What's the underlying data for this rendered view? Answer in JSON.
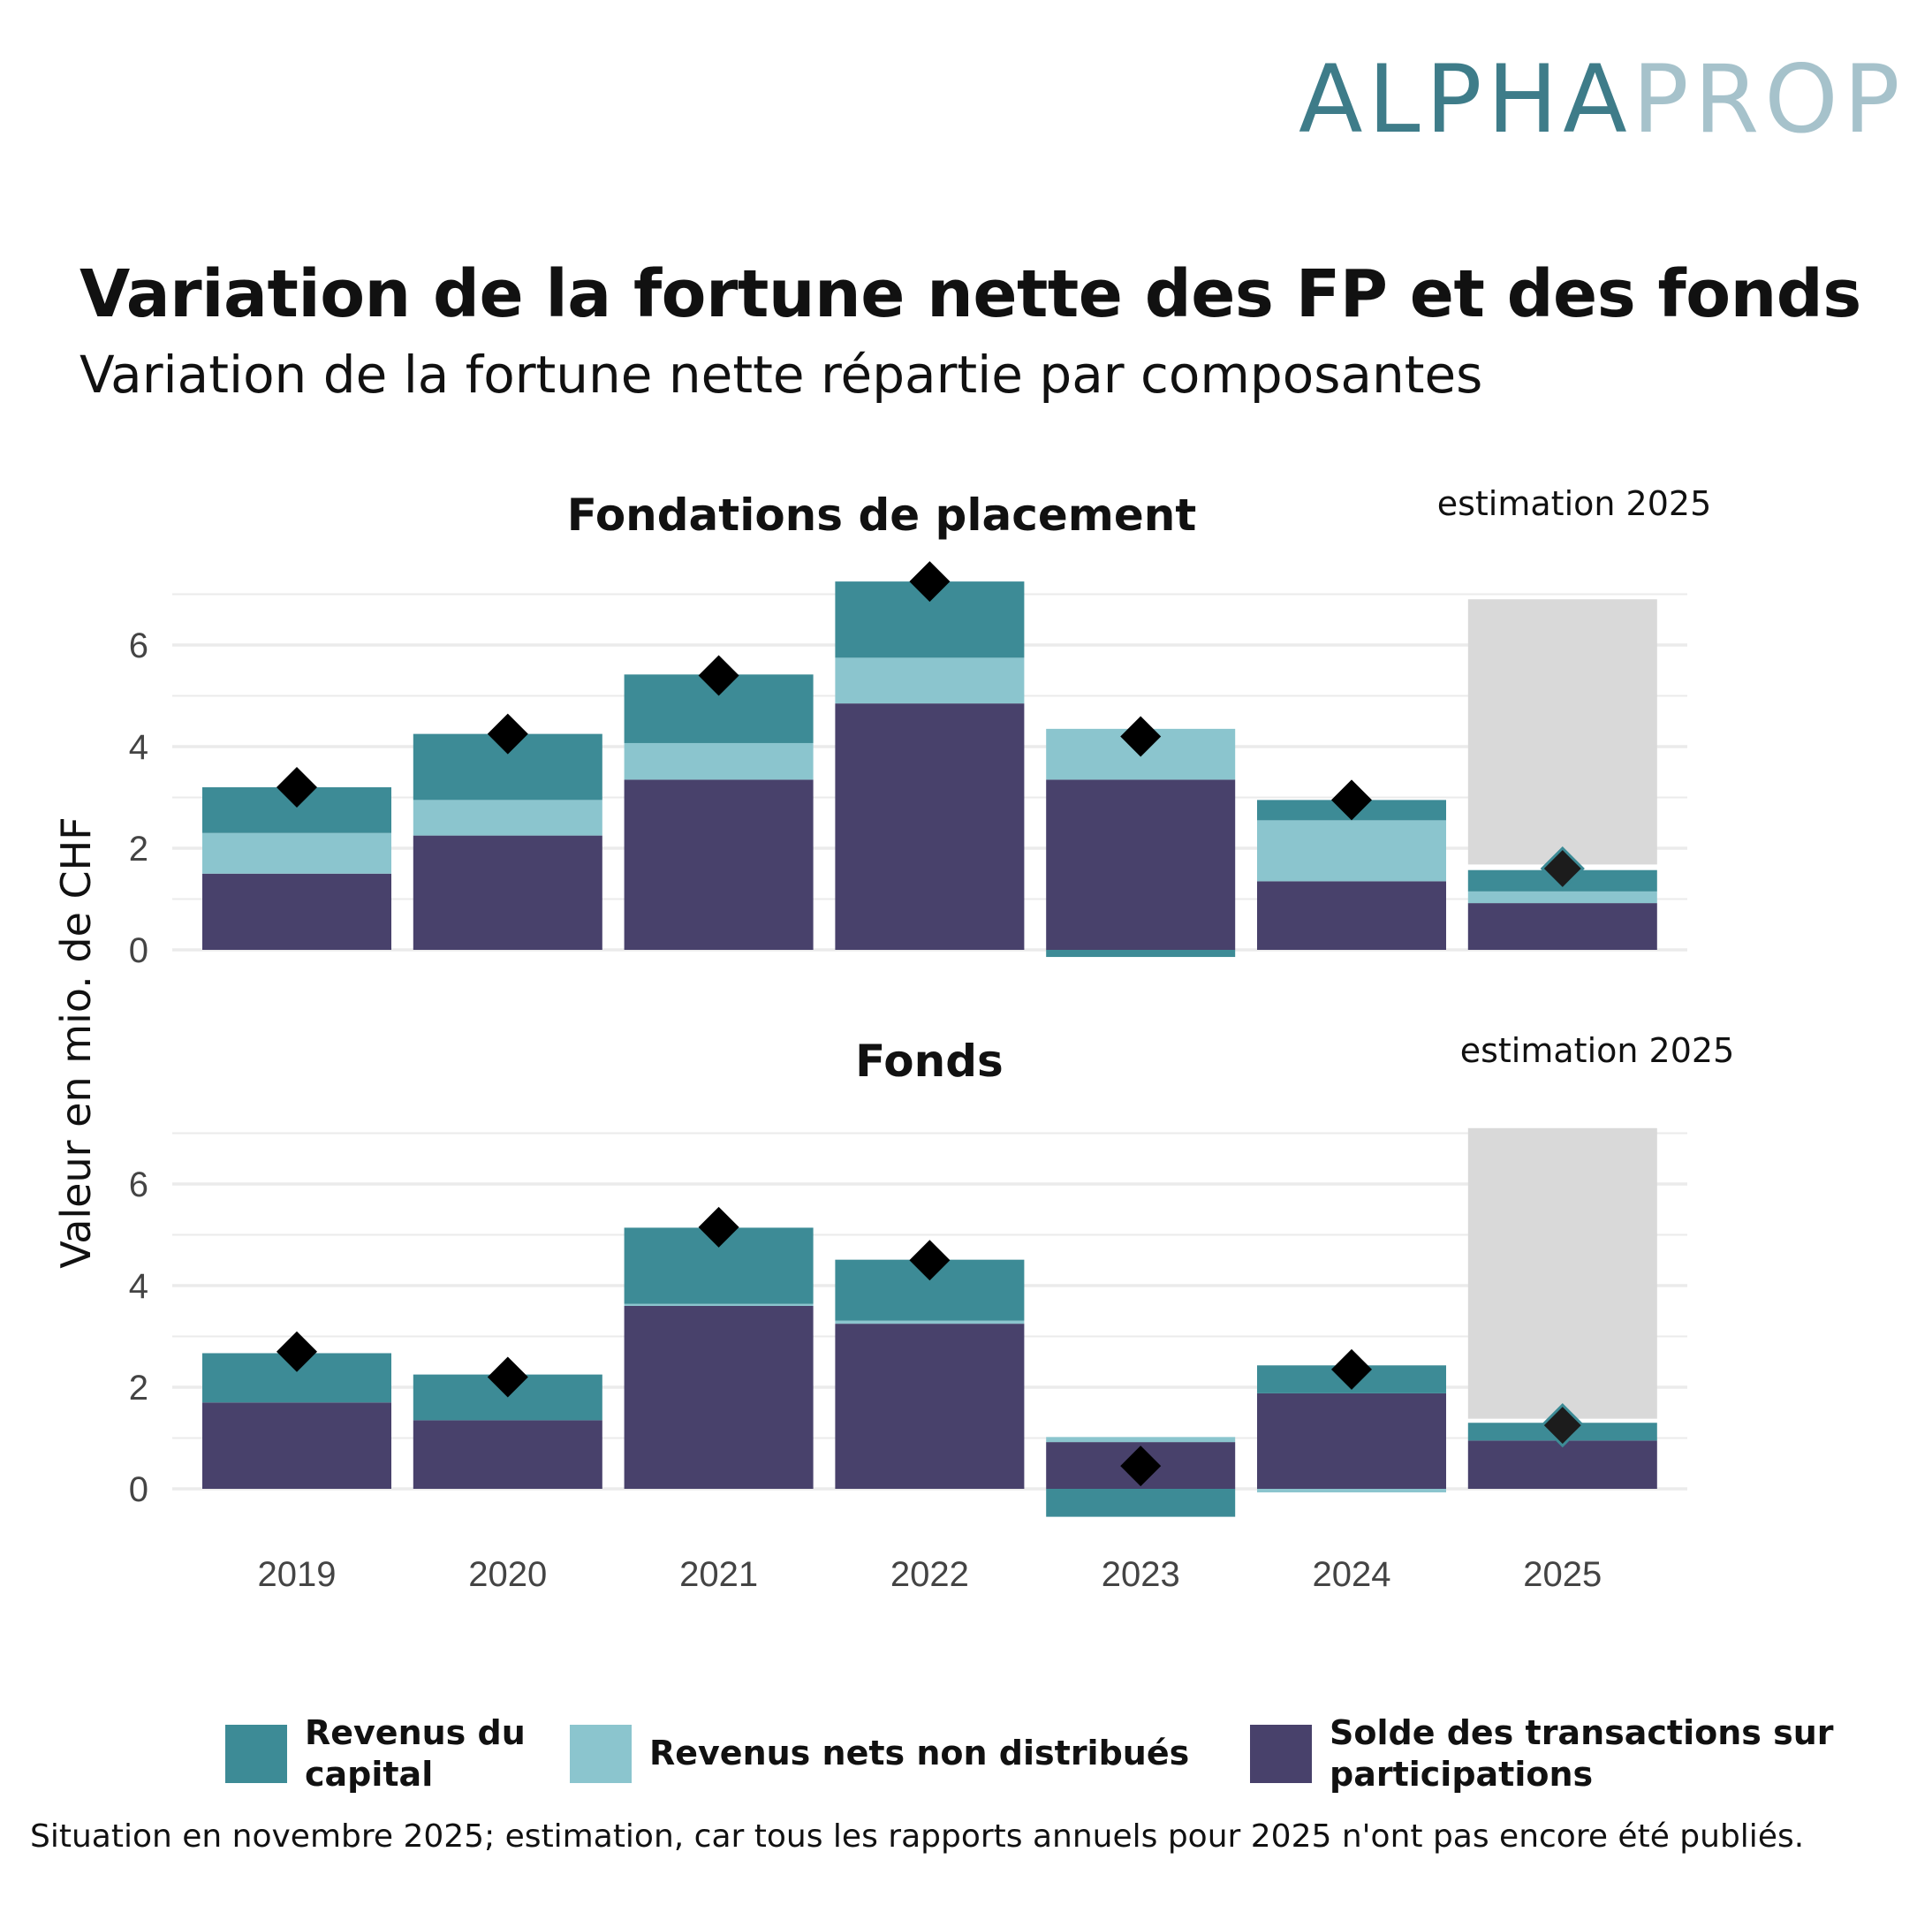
{
  "logo": {
    "part1": "ALPHA",
    "part2": "PROP"
  },
  "title": "Variation de la fortune nette des FP et des fonds",
  "subtitle": "Variation de la fortune nette répartie par composantes",
  "footnote": "Situation en novembre 2025; estimation, car tous les rapports annuels pour 2025 n'ont pas encore été publiés.",
  "colors": {
    "revenus_capital": "#3d8b96",
    "revenus_nets": "#8bc5ce",
    "solde": "#48416b",
    "estimate_box": "#d9d9d9",
    "marker": "#000000",
    "grid": "#ebebeb"
  },
  "legend": [
    {
      "key": "revenus_capital",
      "label_lines": [
        "Revenus du",
        "capital"
      ]
    },
    {
      "key": "revenus_nets",
      "label_lines": [
        "Revenus nets non distribués"
      ]
    },
    {
      "key": "solde",
      "label_lines": [
        "Solde des transactions sur",
        "participations"
      ]
    }
  ],
  "chart_data": [
    {
      "type": "bar",
      "stacked": true,
      "title": "Fondations de placement",
      "annotation": "estimation 2025",
      "ylabel": "Valeur en mio. de CHF",
      "ylim": [
        0,
        7
      ],
      "yticks": [
        0,
        2,
        4,
        6
      ],
      "categories": [
        "2019",
        "2020",
        "2021",
        "2022",
        "2023",
        "2024",
        "2025"
      ],
      "series": [
        {
          "name": "Solde des transactions sur participations",
          "key": "solde",
          "values": [
            1.5,
            2.25,
            3.35,
            4.85,
            3.35,
            1.35,
            0.92
          ]
        },
        {
          "name": "Revenus nets non distribués",
          "key": "revenus_nets",
          "values": [
            0.8,
            0.7,
            0.72,
            0.9,
            1.0,
            1.2,
            0.23
          ]
        },
        {
          "name": "Revenus du capital",
          "key": "revenus_capital",
          "values": [
            0.9,
            1.3,
            1.35,
            1.5,
            -0.14,
            0.4,
            0.42
          ]
        }
      ],
      "totals": [
        3.2,
        4.25,
        5.4,
        7.25,
        4.2,
        2.95,
        1.6
      ],
      "estimate_range": {
        "category": "2025",
        "range": [
          1.68,
          6.9
        ]
      }
    },
    {
      "type": "bar",
      "stacked": true,
      "title": "Fonds",
      "annotation": "estimation 2025",
      "ylabel": "Valeur en mio. de CHF",
      "ylim": [
        0,
        7
      ],
      "yticks": [
        0,
        2,
        4,
        6
      ],
      "xticks": [
        "2019",
        "2020",
        "2021",
        "2022",
        "2023",
        "2024",
        "2025"
      ],
      "categories": [
        "2019",
        "2020",
        "2021",
        "2022",
        "2023",
        "2024",
        "2025"
      ],
      "series": [
        {
          "name": "Solde des transactions sur participations",
          "key": "solde",
          "values": [
            1.7,
            1.35,
            3.6,
            3.25,
            0.92,
            1.88,
            0.95
          ]
        },
        {
          "name": "Revenus nets non distribués",
          "key": "revenus_nets",
          "values": [
            0.0,
            0.0,
            0.04,
            0.06,
            0.1,
            -0.07,
            0.0
          ]
        },
        {
          "name": "Revenus du capital",
          "key": "revenus_capital",
          "values": [
            0.97,
            0.9,
            1.5,
            1.2,
            -0.55,
            0.55,
            0.35
          ]
        }
      ],
      "totals": [
        2.7,
        2.2,
        5.15,
        4.5,
        0.45,
        2.35,
        1.25
      ],
      "estimate_range": {
        "category": "2025",
        "range": [
          1.38,
          7.1
        ]
      }
    }
  ]
}
